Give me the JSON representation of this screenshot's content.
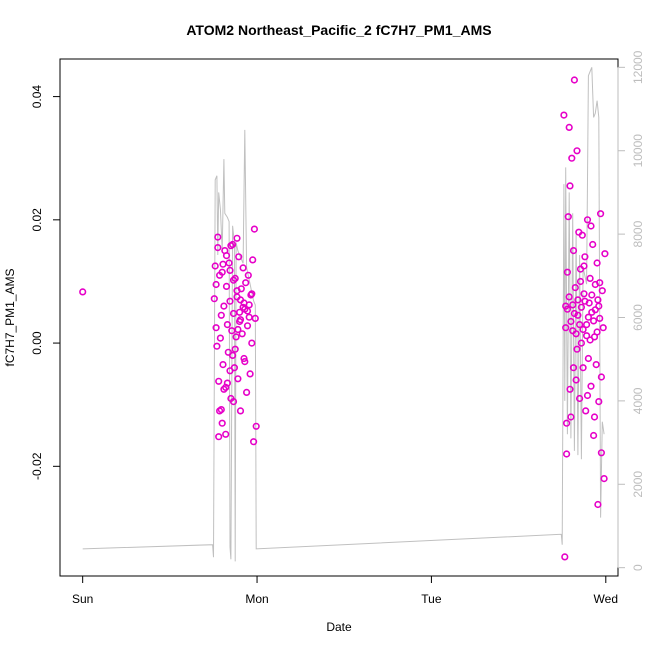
{
  "chart_data": {
    "type": "scatter",
    "title": "ATOM2 Northeast_Pacific_2 fC7H7_PM1_AMS",
    "xlabel": "Date",
    "ylabel": "fC7H7_PM1_AMS",
    "x_unit": "days since Sun 00:00",
    "xlim": [
      -0.13,
      3.07
    ],
    "ylim": [
      -0.0378,
      0.0461
    ],
    "x_ticks": [
      {
        "value": 0,
        "label": "Sun"
      },
      {
        "value": 1,
        "label": "Mon"
      },
      {
        "value": 2,
        "label": "Tue"
      },
      {
        "value": 3,
        "label": "Wed"
      }
    ],
    "y_ticks": [
      {
        "value": -0.02,
        "label": "-0.02"
      },
      {
        "value": 0.0,
        "label": "0.00"
      },
      {
        "value": 0.02,
        "label": "0.02"
      },
      {
        "value": 0.04,
        "label": "0.04"
      }
    ],
    "y2lim": [
      -200,
      12200
    ],
    "y2_ticks": [
      {
        "value": 0,
        "label": "0"
      },
      {
        "value": 2000,
        "label": "2000"
      },
      {
        "value": 4000,
        "label": "4000"
      },
      {
        "value": 6000,
        "label": "6000"
      },
      {
        "value": 8000,
        "label": "8000"
      },
      {
        "value": 10000,
        "label": "10000"
      },
      {
        "value": 12000,
        "label": "12000"
      }
    ],
    "grid": false,
    "colors": {
      "points": "#e600c8",
      "secondary_line": "#c0c0c0",
      "frame": "#000000"
    },
    "series": [
      {
        "kind": "points",
        "points": [
          [
            0.0,
            0.0083
          ],
          [
            0.755,
            0.0072
          ],
          [
            0.76,
            0.0125
          ],
          [
            0.765,
            0.0025
          ],
          [
            0.77,
            -0.0005
          ],
          [
            0.775,
            0.0155
          ],
          [
            0.78,
            -0.0062
          ],
          [
            0.785,
            -0.011
          ],
          [
            0.79,
            0.0008
          ],
          [
            0.795,
            0.0045
          ],
          [
            0.8,
            0.0115
          ],
          [
            0.805,
            -0.0035
          ],
          [
            0.81,
            0.006
          ],
          [
            0.815,
            0.015
          ],
          [
            0.82,
            -0.0072
          ],
          [
            0.825,
            0.0092
          ],
          [
            0.83,
            0.003
          ],
          [
            0.835,
            -0.0015
          ],
          [
            0.84,
            0.013
          ],
          [
            0.845,
            0.0068
          ],
          [
            0.85,
            -0.009
          ],
          [
            0.855,
            0.002
          ],
          [
            0.86,
            0.016
          ],
          [
            0.865,
            0.0048
          ],
          [
            0.87,
            -0.004
          ],
          [
            0.875,
            0.0105
          ],
          [
            0.88,
            0.001
          ],
          [
            0.885,
            0.0075
          ],
          [
            0.89,
            -0.0058
          ],
          [
            0.895,
            0.014
          ],
          [
            0.9,
            0.0035
          ],
          [
            0.905,
            -0.011
          ],
          [
            0.91,
            0.0088
          ],
          [
            0.915,
            0.0015
          ],
          [
            0.92,
            0.0122
          ],
          [
            0.925,
            -0.0025
          ],
          [
            0.93,
            0.0055
          ],
          [
            0.935,
            0.0098
          ],
          [
            0.94,
            -0.008
          ],
          [
            0.945,
            0.0028
          ],
          [
            0.95,
            0.011
          ],
          [
            0.955,
            0.0042
          ],
          [
            0.96,
            -0.005
          ],
          [
            0.965,
            0.0078
          ],
          [
            0.97,
            0.0
          ],
          [
            0.975,
            0.0135
          ],
          [
            0.98,
            -0.016
          ],
          [
            0.985,
            0.0185
          ],
          [
            0.99,
            0.004
          ],
          [
            0.995,
            -0.0135
          ],
          [
            0.775,
            0.0172
          ],
          [
            0.8,
            -0.013
          ],
          [
            0.82,
            -0.0148
          ],
          [
            0.85,
            0.0158
          ],
          [
            0.865,
            -0.0095
          ],
          [
            0.885,
            0.017
          ],
          [
            0.9,
            0.005
          ],
          [
            0.93,
            -0.003
          ],
          [
            0.955,
            0.0062
          ],
          [
            0.97,
            0.008
          ],
          [
            0.78,
            -0.0152
          ],
          [
            0.795,
            -0.0108
          ],
          [
            0.81,
            -0.0075
          ],
          [
            0.83,
            -0.0065
          ],
          [
            0.845,
            -0.0045
          ],
          [
            0.86,
            -0.002
          ],
          [
            0.875,
            -0.001
          ],
          [
            0.89,
            0.0022
          ],
          [
            0.905,
            0.0038
          ],
          [
            0.92,
            0.0058
          ],
          [
            0.765,
            0.0095
          ],
          [
            0.785,
            0.011
          ],
          [
            0.805,
            0.0128
          ],
          [
            0.825,
            0.0142
          ],
          [
            0.845,
            0.0118
          ],
          [
            0.865,
            0.0102
          ],
          [
            0.885,
            0.0085
          ],
          [
            0.905,
            0.007
          ],
          [
            0.925,
            0.0065
          ],
          [
            0.945,
            0.0052
          ],
          [
            2.76,
            0.037
          ],
          [
            2.765,
            -0.0347
          ],
          [
            2.77,
            0.006
          ],
          [
            2.775,
            -0.018
          ],
          [
            2.78,
            0.0115
          ],
          [
            2.785,
            0.0205
          ],
          [
            2.79,
            0.035
          ],
          [
            2.795,
            0.0255
          ],
          [
            2.8,
            -0.012
          ],
          [
            2.805,
            0.03
          ],
          [
            2.81,
            0.002
          ],
          [
            2.815,
            0.015
          ],
          [
            2.82,
            0.0427
          ],
          [
            2.825,
            0.009
          ],
          [
            2.83,
            -0.006
          ],
          [
            2.835,
            0.0312
          ],
          [
            2.84,
            0.0045
          ],
          [
            2.845,
            0.018
          ],
          [
            2.85,
            -0.009
          ],
          [
            2.855,
            0.012
          ],
          [
            2.86,
            0.0
          ],
          [
            2.865,
            0.0175
          ],
          [
            2.87,
            -0.004
          ],
          [
            2.875,
            0.008
          ],
          [
            2.88,
            0.014
          ],
          [
            2.885,
            -0.011
          ],
          [
            2.89,
            0.003
          ],
          [
            2.895,
            0.02
          ],
          [
            2.9,
            -0.0025
          ],
          [
            2.905,
            0.0065
          ],
          [
            2.91,
            0.0105
          ],
          [
            2.915,
            -0.007
          ],
          [
            2.92,
            0.005
          ],
          [
            2.925,
            0.016
          ],
          [
            2.93,
            -0.015
          ],
          [
            2.935,
            0.001
          ],
          [
            2.94,
            0.0095
          ],
          [
            2.945,
            -0.0035
          ],
          [
            2.95,
            0.013
          ],
          [
            2.955,
            0.007
          ],
          [
            2.96,
            -0.0095
          ],
          [
            2.965,
            0.004
          ],
          [
            2.97,
            0.021
          ],
          [
            2.975,
            -0.0055
          ],
          [
            2.98,
            0.0085
          ],
          [
            2.985,
            0.0025
          ],
          [
            2.99,
            -0.022
          ],
          [
            2.995,
            0.0145
          ],
          [
            2.955,
            -0.0262
          ],
          [
            2.975,
            -0.0178
          ],
          [
            2.77,
            0.0025
          ],
          [
            2.78,
            0.0055
          ],
          [
            2.79,
            0.0075
          ],
          [
            2.8,
            0.0035
          ],
          [
            2.81,
            0.0062
          ],
          [
            2.82,
            0.0048
          ],
          [
            2.83,
            0.0015
          ],
          [
            2.84,
            0.007
          ],
          [
            2.85,
            0.003
          ],
          [
            2.86,
            0.0058
          ],
          [
            2.87,
            0.0022
          ],
          [
            2.88,
            0.0068
          ],
          [
            2.89,
            0.0012
          ],
          [
            2.9,
            0.0042
          ],
          [
            2.91,
            0.0005
          ],
          [
            2.92,
            0.0078
          ],
          [
            2.93,
            0.0036
          ],
          [
            2.94,
            0.0054
          ],
          [
            2.95,
            0.0018
          ],
          [
            2.96,
            0.006
          ],
          [
            2.775,
            -0.013
          ],
          [
            2.795,
            -0.0075
          ],
          [
            2.815,
            -0.004
          ],
          [
            2.835,
            -0.001
          ],
          [
            2.855,
            0.01
          ],
          [
            2.875,
            0.0125
          ],
          [
            2.895,
            -0.0085
          ],
          [
            2.915,
            0.019
          ],
          [
            2.935,
            -0.012
          ],
          [
            2.965,
            0.0098
          ]
        ]
      },
      {
        "kind": "line",
        "axis": "right",
        "points": [
          [
            0.0,
            450
          ],
          [
            0.745,
            550
          ],
          [
            0.75,
            250
          ],
          [
            0.76,
            9300
          ],
          [
            0.77,
            9400
          ],
          [
            0.775,
            7500
          ],
          [
            0.78,
            9000
          ],
          [
            0.79,
            8600
          ],
          [
            0.8,
            7600
          ],
          [
            0.81,
            9800
          ],
          [
            0.815,
            8500
          ],
          [
            0.83,
            8400
          ],
          [
            0.84,
            8300
          ],
          [
            0.845,
            500
          ],
          [
            0.85,
            200
          ],
          [
            0.86,
            8200
          ],
          [
            0.87,
            7800
          ],
          [
            0.875,
            150
          ],
          [
            0.88,
            7800
          ],
          [
            0.89,
            7600
          ],
          [
            0.9,
            7500
          ],
          [
            0.91,
            7400
          ],
          [
            0.92,
            7300
          ],
          [
            0.93,
            10500
          ],
          [
            0.94,
            7200
          ],
          [
            0.95,
            7000
          ],
          [
            0.96,
            6800
          ],
          [
            0.97,
            6600
          ],
          [
            0.98,
            6400
          ],
          [
            0.99,
            6300
          ],
          [
            0.995,
            450
          ],
          [
            2.745,
            800
          ],
          [
            2.75,
            550
          ],
          [
            2.76,
            9200
          ],
          [
            2.765,
            4000
          ],
          [
            2.77,
            9600
          ],
          [
            2.78,
            3200
          ],
          [
            2.79,
            9000
          ],
          [
            2.8,
            3100
          ],
          [
            2.81,
            8500
          ],
          [
            2.82,
            2800
          ],
          [
            2.83,
            8000
          ],
          [
            2.84,
            2700
          ],
          [
            2.85,
            7500
          ],
          [
            2.86,
            2600
          ],
          [
            2.87,
            7200
          ],
          [
            2.88,
            7000
          ],
          [
            2.89,
            6800
          ],
          [
            2.9,
            11800
          ],
          [
            2.91,
            11900
          ],
          [
            2.92,
            12000
          ],
          [
            2.93,
            10800
          ],
          [
            2.94,
            10900
          ],
          [
            2.95,
            11200
          ],
          [
            2.96,
            10800
          ],
          [
            2.97,
            1200
          ],
          [
            2.98,
            3500
          ],
          [
            2.99,
            3200
          ]
        ]
      }
    ]
  }
}
